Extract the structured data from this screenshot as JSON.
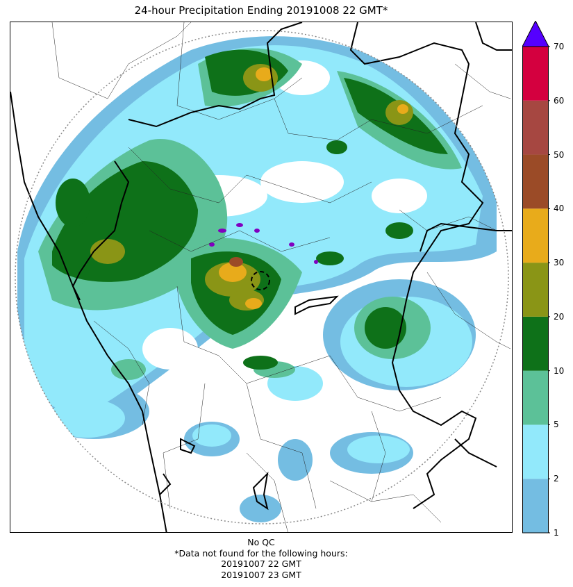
{
  "title": "24-hour Precipitation Ending 20191008 22 GMT*",
  "footer": {
    "qc": "No QC",
    "note": "*Data not found for the following hours:",
    "hours": [
      "20191007 22 GMT",
      "20191007 23 GMT"
    ]
  },
  "colorbar": {
    "ticks": [
      "1",
      "2",
      "5",
      "10",
      "20",
      "30",
      "40",
      "50",
      "60",
      "70"
    ],
    "colors": [
      "#74bde2",
      "#92e9fb",
      "#5cc198",
      "#0e7119",
      "#8a9516",
      "#e8ab1b",
      "#9b4b27",
      "#a64741",
      "#d4003f"
    ],
    "over_color": "#5500ff"
  },
  "map": {
    "colors": {
      "light_blue": "#74bde2",
      "cyan": "#92e9fb",
      "sea_green": "#5cc198",
      "dark_green": "#0e7119",
      "olive": "#8a9516",
      "orange": "#e8ab1b",
      "brown": "#9b4b27",
      "purple": "#8000c0"
    }
  }
}
